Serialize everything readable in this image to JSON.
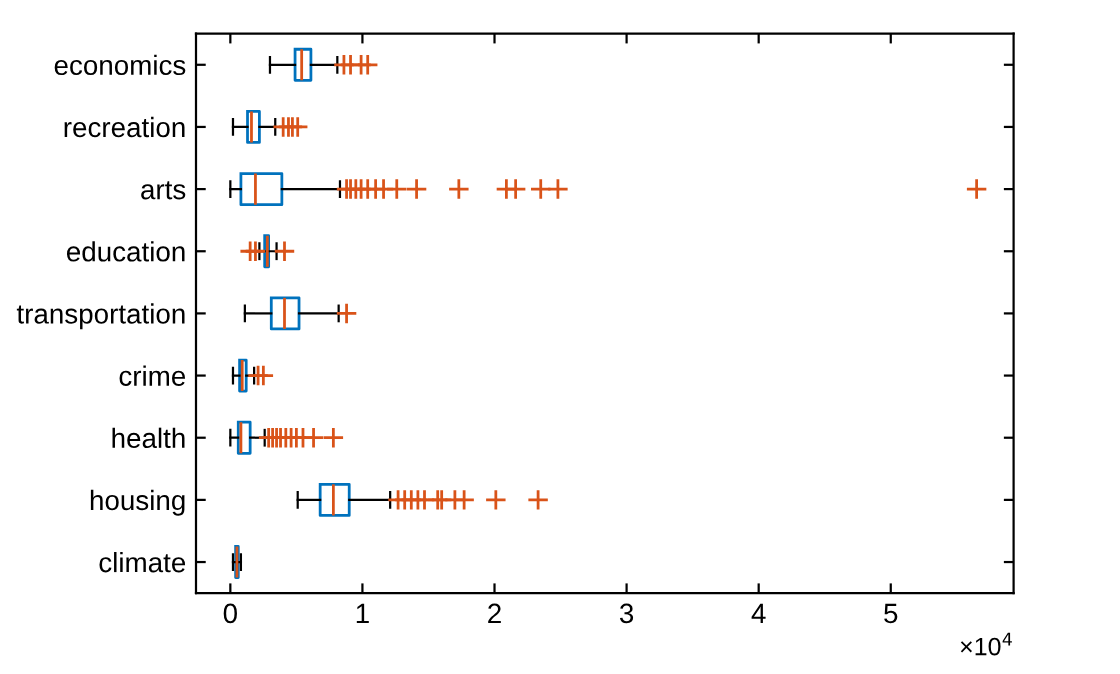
{
  "chart_data": {
    "type": "box",
    "orientation": "horizontal",
    "categories": [
      "economics",
      "recreation",
      "arts",
      "education",
      "transportation",
      "crime",
      "health",
      "housing",
      "climate"
    ],
    "series": [
      {
        "color": "#0072bd",
        "boxes": [
          {
            "low": 0.3,
            "q1": 0.49,
            "median": 0.54,
            "q3": 0.61,
            "high": 0.81,
            "outliers": [
              0.86,
              0.91,
              0.99,
              1.04
            ]
          },
          {
            "low": 0.02,
            "q1": 0.13,
            "median": 0.16,
            "q3": 0.22,
            "high": 0.34,
            "outliers": [
              0.4,
              0.44,
              0.47,
              0.51
            ]
          },
          {
            "low": 0.0,
            "q1": 0.08,
            "median": 0.19,
            "q3": 0.39,
            "high": 0.83,
            "outliers": [
              0.88,
              0.91,
              0.95,
              0.99,
              1.04,
              1.1,
              1.16,
              1.26,
              1.41,
              1.73,
              2.09,
              2.16,
              2.35,
              2.48,
              5.65
            ]
          },
          {
            "low": 0.22,
            "q1": 0.26,
            "median": 0.28,
            "q3": 0.29,
            "high": 0.35,
            "outliers": [
              0.15,
              0.19,
              0.41
            ]
          },
          {
            "low": 0.11,
            "q1": 0.31,
            "median": 0.41,
            "q3": 0.52,
            "high": 0.82,
            "outliers": [
              0.88
            ]
          },
          {
            "low": 0.02,
            "q1": 0.07,
            "median": 0.09,
            "q3": 0.12,
            "high": 0.18,
            "outliers": [
              0.21,
              0.25
            ]
          },
          {
            "low": 0.0,
            "q1": 0.06,
            "median": 0.08,
            "q3": 0.15,
            "high": 0.26,
            "outliers": [
              0.29,
              0.32,
              0.35,
              0.38,
              0.42,
              0.46,
              0.5,
              0.55,
              0.63,
              0.78
            ]
          },
          {
            "low": 0.51,
            "q1": 0.68,
            "median": 0.78,
            "q3": 0.9,
            "high": 1.21,
            "outliers": [
              1.27,
              1.32,
              1.37,
              1.42,
              1.47,
              1.57,
              1.6,
              1.7,
              1.77,
              2.01,
              2.33
            ]
          },
          {
            "low": 0.02,
            "q1": 0.04,
            "median": 0.05,
            "q3": 0.06,
            "high": 0.08
          }
        ]
      }
    ],
    "xlim": [
      -0.26,
      5.93
    ],
    "xticks": [
      0,
      1,
      2,
      3,
      4,
      5
    ],
    "annotations": [
      "×10$^{4}$"
    ],
    "grid": false
  }
}
